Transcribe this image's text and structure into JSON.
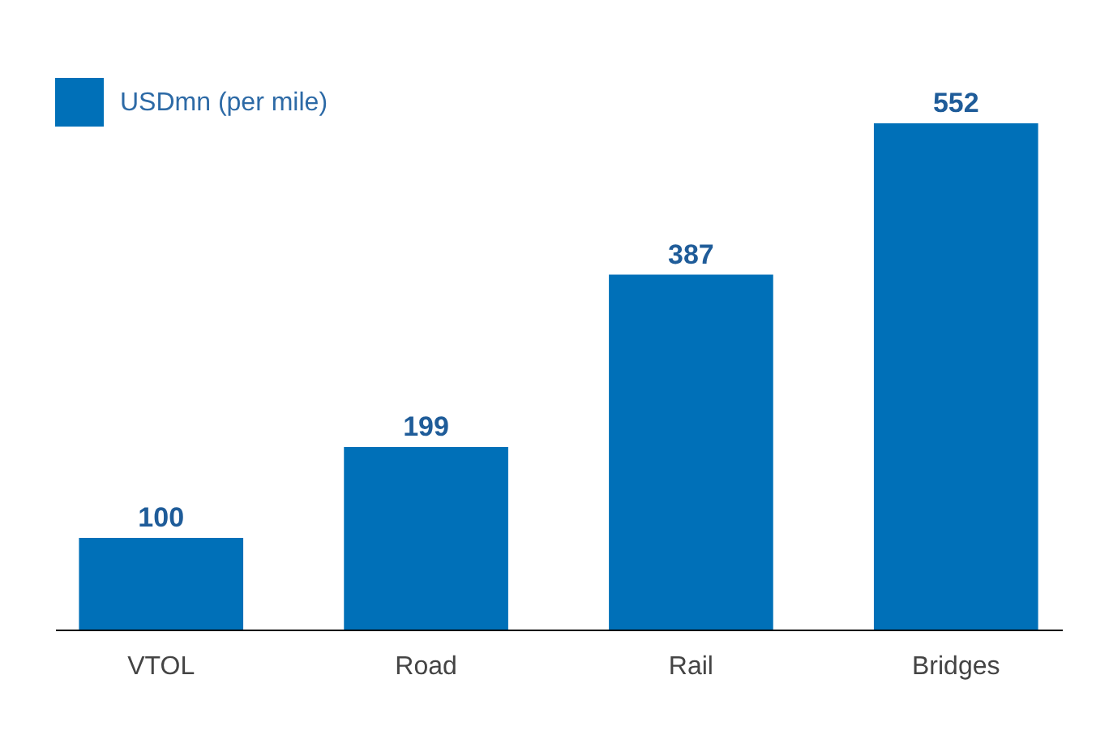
{
  "chart_data": {
    "type": "bar",
    "categories": [
      "VTOL",
      "Road",
      "Rail",
      "Bridges"
    ],
    "series": [
      {
        "name": "USDmn (per mile)",
        "color": "#0070b8",
        "values": [
          100,
          199,
          387,
          552
        ]
      }
    ],
    "data_labels": true,
    "legend": "top left",
    "grid": false
  }
}
